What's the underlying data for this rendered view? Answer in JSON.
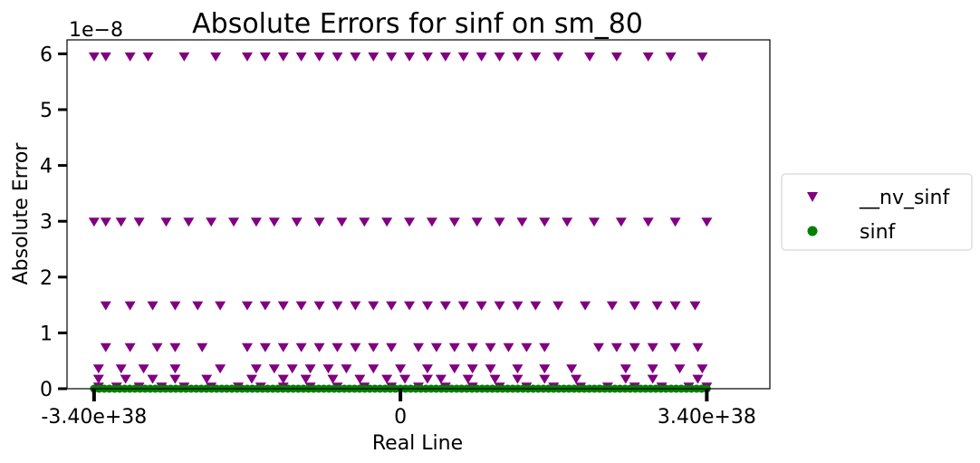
{
  "chart_data": {
    "type": "scatter",
    "title": "Absolute Errors for sinf on sm_80",
    "xlabel": "Real Line",
    "ylabel": "Absolute Error",
    "y_multiplier": "1e−8",
    "xlim": [
      -3.7e+38,
      4.1e+38
    ],
    "ylim": [
      0,
      6.25e-08
    ],
    "x_ticks": [
      {
        "value": -3.4e+38,
        "label": "-3.40e+38"
      },
      {
        "value": 0,
        "label": "0"
      },
      {
        "value": 3.4e+38,
        "label": "3.40e+38"
      }
    ],
    "y_ticks": [
      {
        "value": 0,
        "label": "0"
      },
      {
        "value": 1e-08,
        "label": "1"
      },
      {
        "value": 2e-08,
        "label": "2"
      },
      {
        "value": 3e-08,
        "label": "3"
      },
      {
        "value": 4e-08,
        "label": "4"
      },
      {
        "value": 5e-08,
        "label": "5"
      },
      {
        "value": 6e-08,
        "label": "6"
      }
    ],
    "grid": false,
    "legend_position": "outside-right",
    "series": [
      {
        "name": "__nv_sinf",
        "marker": "triangle-down",
        "color": "#800080",
        "clusters": [
          {
            "y": 5.96e-08,
            "x": [
              -3.4e+38,
              -3.27e+38,
              -3e+38,
              -2.8e+38,
              -2.4e+38,
              -2.05e+38,
              -1.7e+38,
              -1.5e+38,
              -1.3e+38,
              -1.1e+38,
              -9e+37,
              -7e+37,
              -5e+37,
              -3e+37,
              -1e+37,
              1e+37,
              3e+37,
              5e+37,
              7e+37,
              9e+37,
              1.1e+38,
              1.3e+38,
              1.5e+38,
              1.75e+38,
              2.1e+38,
              2.4e+38,
              2.75e+38,
              3e+38,
              3.35e+38
            ]
          },
          {
            "y": 3e-08,
            "x": [
              -3.4e+38,
              -3.27e+38,
              -3.1e+38,
              -2.9e+38,
              -2.6e+38,
              -2.35e+38,
              -2.1e+38,
              -1.85e+38,
              -1.6e+38,
              -1.4e+38,
              -1.15e+38,
              -9e+37,
              -6.5e+37,
              -4e+37,
              -1.5e+37,
              1e+37,
              3.5e+37,
              6e+37,
              8.5e+37,
              1.1e+38,
              1.35e+38,
              1.6e+38,
              1.85e+38,
              2.15e+38,
              2.45e+38,
              2.75e+38,
              3.05e+38,
              3.4e+38
            ]
          },
          {
            "y": 1.5e-08,
            "x": [
              -3.27e+38,
              -3e+38,
              -2.75e+38,
              -2.5e+38,
              -2.25e+38,
              -2e+38,
              -1.7e+38,
              -1.5e+38,
              -1.3e+38,
              -1.1e+38,
              -9e+37,
              -7e+37,
              -5e+37,
              -3e+37,
              -1e+37,
              1e+37,
              3e+37,
              5e+37,
              7e+37,
              9e+37,
              1.1e+38,
              1.3e+38,
              1.5e+38,
              1.75e+38,
              2.05e+38,
              2.35e+38,
              2.6e+38,
              2.85e+38,
              3.05e+38,
              3.27e+38
            ]
          },
          {
            "y": 7.5e-09,
            "x": [
              -3.27e+38,
              -3e+38,
              -2.7e+38,
              -2.5e+38,
              -2.2e+38,
              -1.7e+38,
              -1.5e+38,
              -1.3e+38,
              -1.1e+38,
              -9e+37,
              -7e+37,
              -5e+37,
              -3e+37,
              -1e+37,
              2e+37,
              4e+37,
              6e+37,
              8e+37,
              1e+38,
              1.2e+38,
              1.4e+38,
              1.6e+38,
              2.2e+38,
              2.4e+38,
              2.6e+38,
              2.8e+38,
              3.05e+38,
              3.3e+38
            ]
          },
          {
            "y": 3.7e-09,
            "x": [
              -3.35e+38,
              -3.1e+38,
              -2.85e+38,
              -2.5e+38,
              -2e+38,
              -1.6e+38,
              -1.4e+38,
              -1.2e+38,
              -1e+38,
              -8e+37,
              -6e+37,
              -3e+37,
              0.0,
              3e+37,
              6e+37,
              8e+37,
              1e+38,
              1.3e+38,
              1.6e+38,
              1.9e+38,
              2.5e+38,
              2.8e+38,
              3.1e+38,
              3.35e+38
            ]
          },
          {
            "y": 1.85e-09,
            "x": [
              -3.35e+38,
              -3.05e+38,
              -2.75e+38,
              -2.5e+38,
              -2.15e+38,
              -1.65e+38,
              -1.3e+38,
              -1.05e+38,
              -7.5e+37,
              -4.5e+37,
              -1.5e+37,
              5e+36,
              3e+37,
              4.5e+37,
              7.5e+37,
              1.05e+38,
              1.3e+38,
              1.6e+38,
              1.95e+38,
              2.5e+38,
              2.8e+38,
              3.3e+38
            ]
          },
          {
            "y": 4.5e-10,
            "x": [
              -3.35e+38,
              -3.15e+38,
              -2.9e+38,
              -2.65e+38,
              -2.4e+38,
              -2.1e+38,
              -1.8e+38,
              -1.55e+38,
              -1.3e+38,
              -1e+38,
              -7e+37,
              -4e+37,
              -1e+37,
              2e+37,
              5e+37,
              8e+37,
              1.1e+38,
              1.4e+38,
              1.7e+38,
              2e+38,
              2.3e+38,
              2.6e+38,
              2.9e+38,
              3.2e+38,
              3.4e+38
            ]
          }
        ]
      },
      {
        "name": "sinf",
        "marker": "circle",
        "color": "#008000",
        "clusters": [
          {
            "y": 0,
            "x_range": [
              -3.4e+38,
              3.4e+38
            ]
          }
        ]
      }
    ]
  }
}
